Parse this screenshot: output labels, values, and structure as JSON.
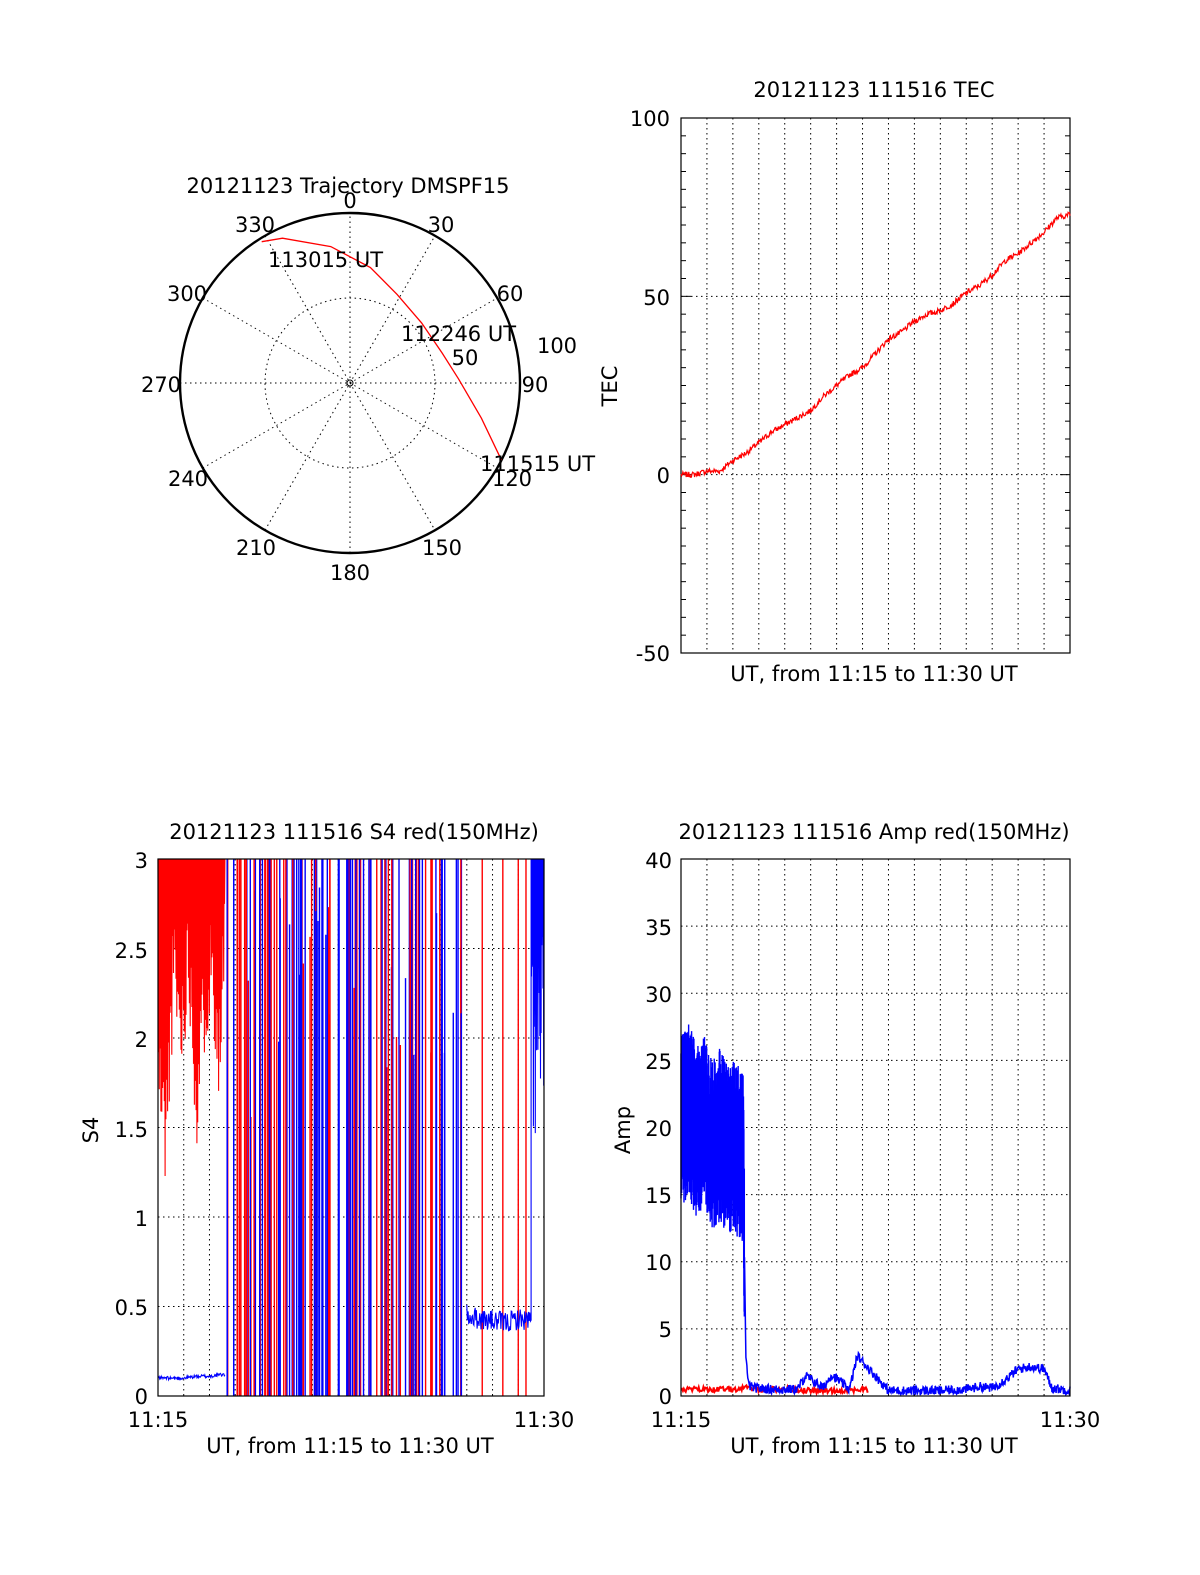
{
  "chart_data": [
    {
      "type": "polar",
      "title": "20121123 Trajectory DMSPF15",
      "angle_labels": [
        "0",
        "30",
        "60",
        "90",
        "120",
        "150",
        "180",
        "210",
        "240",
        "270",
        "300",
        "330"
      ],
      "radius_labels": [
        "50",
        "100"
      ],
      "rlim": [
        0,
        100
      ],
      "annotations": [
        "113015 UT",
        "112246 UT",
        "111515 UT"
      ],
      "series": [
        {
          "color": "#ff0000",
          "points": [
            {
              "azimuth": 117,
              "zenith": 100
            },
            {
              "azimuth": 105,
              "zenith": 80
            },
            {
              "azimuth": 88,
              "zenith": 64
            },
            {
              "azimuth": 72,
              "zenith": 57
            },
            {
              "azimuth": 50,
              "zenith": 55
            },
            {
              "azimuth": 28,
              "zenith": 59
            },
            {
              "azimuth": 10,
              "zenith": 69
            },
            {
              "azimuth": 352,
              "zenith": 81
            },
            {
              "azimuth": 335,
              "zenith": 94
            },
            {
              "azimuth": 328,
              "zenith": 98
            }
          ]
        }
      ]
    },
    {
      "type": "line",
      "title": "20121123 111516 TEC",
      "xlabel": "UT, from 11:15 to 11:30 UT",
      "ylabel": "TEC",
      "xlim": [
        0,
        15
      ],
      "ylim": [
        -50,
        100
      ],
      "yticks": [
        "-50",
        "0",
        "50",
        "100"
      ],
      "grid": true,
      "series": [
        {
          "color": "#ff0000",
          "x": [
            0,
            0.5,
            1.0,
            1.5,
            2.0,
            2.5,
            3.0,
            3.5,
            4.0,
            4.5,
            5.0,
            5.5,
            6.0,
            6.5,
            7.0,
            7.5,
            8.0,
            8.5,
            9.0,
            9.5,
            10.0,
            10.5,
            11.0,
            11.5,
            12.0,
            12.5,
            13.0,
            13.5,
            14.0,
            14.5,
            15.0
          ],
          "y": [
            0,
            0,
            1,
            1,
            4,
            6,
            9,
            12,
            14,
            16,
            18,
            22,
            25,
            28,
            30,
            34,
            38,
            40,
            43,
            45,
            46,
            48,
            51,
            53,
            56,
            60,
            62,
            65,
            68,
            72,
            73
          ]
        }
      ]
    },
    {
      "type": "line",
      "title": "20121123 111516 S4 red(150MHz)",
      "xlabel": "UT, from 11:15 to 11:30 UT",
      "ylabel": "S4",
      "xticks": [
        "11:15",
        "11:30"
      ],
      "xlim": [
        0,
        15
      ],
      "ylim": [
        0,
        3
      ],
      "yticks": [
        "0",
        "0.5",
        "1",
        "1.5",
        "2",
        "2.5",
        "3"
      ],
      "grid": true,
      "series": [
        {
          "color": "#ff0000",
          "x": [
            0.0,
            0.3,
            0.6,
            0.9,
            1.2,
            1.5,
            1.8,
            2.1,
            2.4,
            2.6
          ],
          "y": [
            1.85,
            1.45,
            2.4,
            2.05,
            2.5,
            1.65,
            2.2,
            2.45,
            1.9,
            2.6
          ]
        },
        {
          "color": "#0000ff",
          "x": [
            0.0,
            0.5,
            1.0,
            1.5,
            2.0,
            2.5,
            2.6,
            12.0,
            12.5,
            13.0,
            13.5,
            14.0,
            14.5,
            14.7,
            15.0
          ],
          "y": [
            0.1,
            0.1,
            0.1,
            0.11,
            0.11,
            0.12,
            0.12,
            0.45,
            0.43,
            0.42,
            0.41,
            0.43,
            0.42,
            1.5,
            2.7
          ]
        }
      ]
    },
    {
      "type": "line",
      "title": "20121123 111516 Amp red(150MHz)",
      "xlabel": "UT, from 11:15 to 11:30 UT",
      "ylabel": "Amp",
      "xticks": [
        "11:15",
        "11:30"
      ],
      "xlim": [
        0,
        15
      ],
      "ylim": [
        0,
        40
      ],
      "yticks": [
        "0",
        "5",
        "10",
        "15",
        "20",
        "25",
        "30",
        "35",
        "40"
      ],
      "grid": true,
      "series": [
        {
          "color": "#0000ff",
          "x": [
            0.0,
            0.3,
            0.6,
            0.9,
            1.2,
            1.5,
            1.8,
            2.1,
            2.4,
            2.5,
            2.6,
            2.8,
            3.5,
            4.5,
            4.8,
            5.5,
            5.8,
            6.5,
            6.8,
            8.0,
            9.0,
            10.0,
            11.0,
            11.5,
            12.0,
            12.5,
            13.0,
            13.5,
            14.0,
            14.3,
            15.0
          ],
          "y": [
            21,
            22,
            20,
            21,
            19,
            20,
            19,
            19,
            18,
            3,
            0.8,
            0.6,
            0.5,
            0.5,
            1.5,
            0.6,
            1.6,
            0.5,
            3.0,
            0.4,
            0.4,
            0.4,
            0.5,
            0.7,
            0.6,
            1.2,
            2.0,
            2.2,
            2.0,
            0.6,
            0.4
          ]
        },
        {
          "color": "#ff0000",
          "x": [
            0.0,
            1.0,
            2.0,
            2.5,
            3.0,
            4.0,
            5.0,
            6.0,
            7.0,
            7.2
          ],
          "y": [
            0.3,
            0.3,
            0.3,
            0.4,
            0.3,
            0.3,
            0.2,
            0.2,
            0.3,
            0.2
          ]
        }
      ]
    }
  ]
}
